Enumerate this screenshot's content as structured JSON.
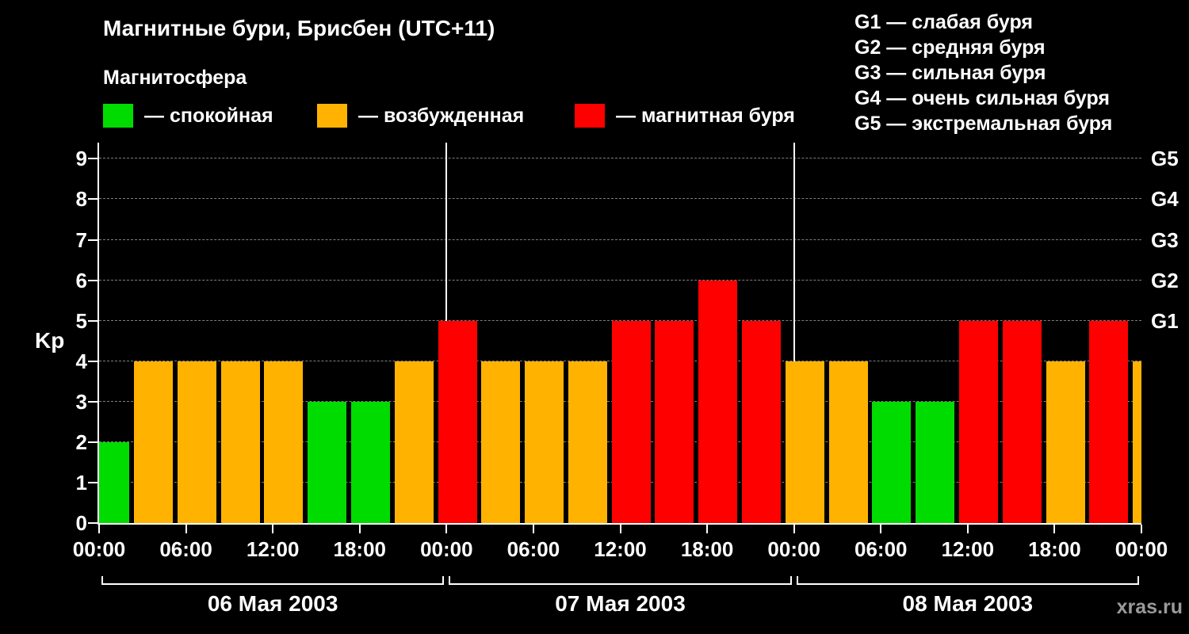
{
  "header": {
    "title": "Магнитные бури, Брисбен (UTC+11)"
  },
  "legend": {
    "title": "Магнитосфера",
    "items": [
      {
        "name": "quiet",
        "label": "— спокойная",
        "color": "#00dc00"
      },
      {
        "name": "unsettled",
        "label": "— возбужденная",
        "color": "#ffb300"
      },
      {
        "name": "storm",
        "label": "— магнитная буря",
        "color": "#ff0000"
      }
    ]
  },
  "storm_scale_legend": {
    "items": [
      "G1 — слабая буря",
      "G2 — средняя буря",
      "G3 — сильная буря",
      "G4 — очень сильная буря",
      "G5 — экстремальная буря"
    ]
  },
  "watermark": "xras.ru",
  "chart_data": {
    "type": "bar",
    "title": "Магнитные бури, Брисбен (UTC+11)",
    "ylabel": "Kp",
    "ylim": [
      0,
      9.4
    ],
    "yticks": [
      0,
      1,
      2,
      3,
      4,
      5,
      6,
      7,
      8,
      9
    ],
    "grid": "dashed-horizontal",
    "right_axis_labels": [
      {
        "label": "G1",
        "value": 5
      },
      {
        "label": "G2",
        "value": 6
      },
      {
        "label": "G3",
        "value": 7
      },
      {
        "label": "G4",
        "value": 8
      },
      {
        "label": "G5",
        "value": 9
      }
    ],
    "bar_interval_hours": 3,
    "x_tick_labels": [
      {
        "hour": 0,
        "label": "00:00"
      },
      {
        "hour": 6,
        "label": "06:00"
      },
      {
        "hour": 12,
        "label": "12:00"
      },
      {
        "hour": 18,
        "label": "18:00"
      },
      {
        "hour": 24,
        "label": "00:00"
      },
      {
        "hour": 30,
        "label": "06:00"
      },
      {
        "hour": 36,
        "label": "12:00"
      },
      {
        "hour": 42,
        "label": "18:00"
      },
      {
        "hour": 48,
        "label": "00:00"
      },
      {
        "hour": 54,
        "label": "06:00"
      },
      {
        "hour": 60,
        "label": "12:00"
      },
      {
        "hour": 66,
        "label": "18:00"
      },
      {
        "hour": 72,
        "label": "00:00"
      }
    ],
    "days": [
      {
        "date": "06 Мая 2003",
        "start_hour": 0,
        "kp_values": [
          2,
          4,
          4,
          4,
          4,
          3,
          3,
          4
        ]
      },
      {
        "date": "07 Мая 2003",
        "start_hour": 24,
        "kp_values": [
          5,
          4,
          4,
          4,
          5,
          5,
          6,
          5
        ]
      },
      {
        "date": "08 Мая 2003",
        "start_hour": 48,
        "kp_values": [
          4,
          4,
          3,
          3,
          5,
          5,
          4,
          5
        ]
      }
    ],
    "partial_next_bar": {
      "hour": 72,
      "kp": 4
    },
    "color_thresholds": {
      "quiet_max_kp": 3,
      "storm_min_kp": 5
    },
    "colors": {
      "quiet": "#00dc00",
      "unsettled": "#ffb300",
      "storm": "#ff0000"
    },
    "day_divider_hours": [
      24,
      48
    ]
  }
}
